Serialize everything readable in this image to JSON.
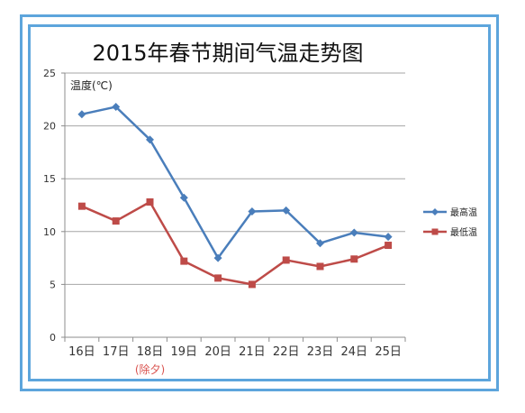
{
  "chart_data": {
    "type": "line",
    "title": "2015年春节期间气温走势图",
    "ylabel": "温度(℃)",
    "xlabel": "",
    "ylim": [
      0,
      25
    ],
    "yticks": [
      "0",
      "5",
      "10",
      "15",
      "20",
      "25"
    ],
    "categories": [
      "16日",
      "17日",
      "18日",
      "19日",
      "20日",
      "21日",
      "22日",
      "23日",
      "24日",
      "25日"
    ],
    "category_note": {
      "index": 2,
      "text": "(除夕)"
    },
    "grid": true,
    "legend_position": "right",
    "series": [
      {
        "name": "最高温",
        "color": "#4a7ebb",
        "marker": "diamond",
        "values": [
          21.1,
          21.8,
          18.7,
          13.2,
          7.5,
          11.9,
          12.0,
          8.9,
          9.9,
          9.5
        ]
      },
      {
        "name": "最低温",
        "color": "#be4b48",
        "marker": "square",
        "values": [
          12.4,
          11.0,
          12.8,
          7.2,
          5.6,
          5.0,
          7.3,
          6.7,
          7.4,
          8.7
        ]
      }
    ]
  }
}
